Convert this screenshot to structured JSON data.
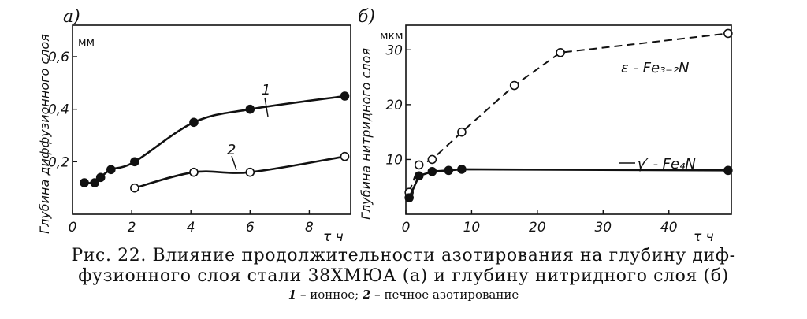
{
  "caption": {
    "line1": "Рис. 22. Влияние продолжительности азотирования на глубину диф-",
    "line2": "фузионного слоя стали 38ХМЮА (а) и глубину нитридного слоя (б)",
    "line3_n1": "1",
    "line3_t1": " – ионное; ",
    "line3_n2": "2",
    "line3_t2": " – печное азотирование"
  },
  "chart_data": [
    {
      "type": "scatter",
      "panel_tag": "а)",
      "ylabel": "Глубина диффузионного слоя",
      "y_unit": "мм",
      "xlabel": "τ ч",
      "xlim": [
        0,
        9.4
      ],
      "ylim": [
        0,
        0.72
      ],
      "x_ticks": [
        0,
        2,
        4,
        6,
        8
      ],
      "y_ticks": [
        0.2,
        0.4,
        0.6
      ],
      "x_tick_labels": [
        "0",
        "2",
        "4",
        "6",
        "8"
      ],
      "y_tick_labels": [
        "0,2",
        "0,4",
        "0,6"
      ],
      "grid": false,
      "series": [
        {
          "name": "1",
          "marker": "filled",
          "line": "smooth",
          "points": [
            [
              0.4,
              0.12
            ],
            [
              0.75,
              0.12
            ],
            [
              0.95,
              0.14
            ],
            [
              1.3,
              0.17
            ],
            [
              2.1,
              0.2
            ],
            [
              4.1,
              0.35
            ],
            [
              6.0,
              0.4
            ],
            [
              9.2,
              0.45
            ]
          ]
        },
        {
          "name": "2",
          "marker": "open",
          "line": "smooth",
          "points": [
            [
              2.1,
              0.1
            ],
            [
              4.1,
              0.16
            ],
            [
              6.0,
              0.16
            ],
            [
              9.2,
              0.22
            ]
          ]
        }
      ]
    },
    {
      "type": "scatter",
      "panel_tag": "б)",
      "ylabel": "Глубина нитридного слоя",
      "y_unit": "мкм",
      "xlabel": "τ ч",
      "xlim": [
        0,
        49.5
      ],
      "ylim": [
        0,
        34.5
      ],
      "x_ticks": [
        0,
        10,
        20,
        30,
        40
      ],
      "y_ticks": [
        10,
        20,
        30
      ],
      "x_tick_labels": [
        "0",
        "10",
        "20",
        "30",
        "40"
      ],
      "y_tick_labels": [
        "10",
        "20",
        "30"
      ],
      "grid": false,
      "series": [
        {
          "name": "ε - Fe₃₋₂N",
          "marker": "open",
          "line": "dashed",
          "points": [
            [
              0.5,
              4.0
            ],
            [
              2.0,
              9.0
            ],
            [
              4.0,
              10.0
            ],
            [
              8.5,
              15.0
            ],
            [
              16.5,
              23.5
            ],
            [
              23.5,
              29.5
            ],
            [
              49.0,
              33.0
            ]
          ]
        },
        {
          "name": "γ′ - Fe₄N",
          "marker": "filled",
          "line": "solid",
          "points": [
            [
              0.5,
              3.0
            ],
            [
              2.0,
              7.0
            ],
            [
              4.0,
              7.8
            ],
            [
              6.5,
              8.0
            ],
            [
              8.5,
              8.2
            ],
            [
              49.0,
              8.0
            ]
          ]
        }
      ]
    }
  ]
}
